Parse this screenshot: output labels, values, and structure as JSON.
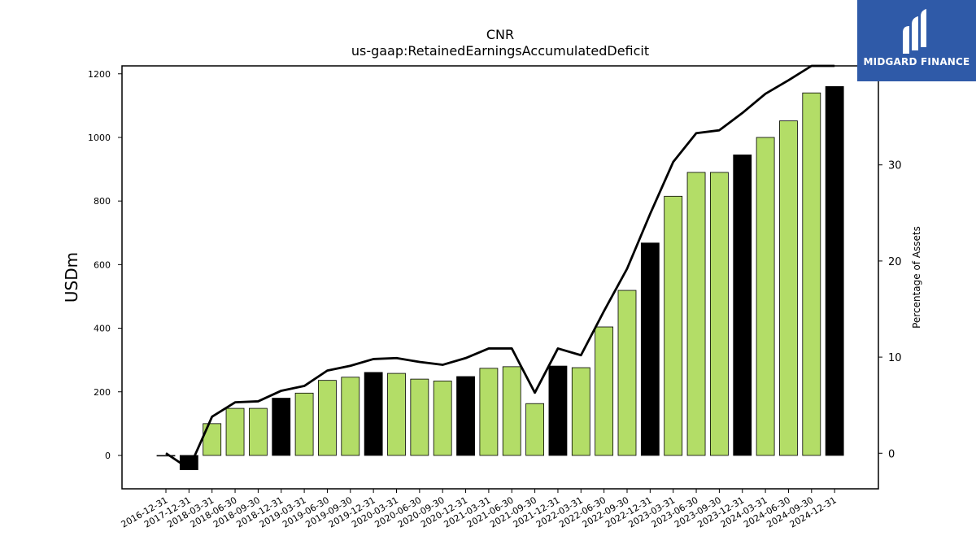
{
  "chart_data": {
    "type": "bar",
    "title": "CNR",
    "subtitle": "us-gaap:RetainedEarningsAccumulatedDeficit",
    "ylabel": "USDm",
    "y2label": "Percentage of Assets",
    "ylim": [
      -105,
      1225
    ],
    "y2lim": [
      -3.7,
      40.3
    ],
    "yticks": [
      0,
      200,
      400,
      600,
      800,
      1000,
      1200
    ],
    "y2ticks": [
      0,
      10,
      20,
      30,
      40
    ],
    "grid": false,
    "categories": [
      "2016-12-31",
      "2017-12-31",
      "2018-03-31",
      "2018-06-30",
      "2018-09-30",
      "2018-12-31",
      "2019-03-31",
      "2019-06-30",
      "2019-09-30",
      "2019-12-31",
      "2020-03-31",
      "2020-06-30",
      "2020-09-30",
      "2020-12-31",
      "2021-03-31",
      "2021-06-30",
      "2021-09-30",
      "2021-12-31",
      "2022-03-31",
      "2022-06-30",
      "2022-09-30",
      "2022-12-31",
      "2023-03-31",
      "2023-06-30",
      "2023-09-30",
      "2023-12-31",
      "2024-03-31",
      "2024-06-30",
      "2024-09-30",
      "2024-12-31"
    ],
    "series": [
      {
        "type": "bar",
        "values": [
          0,
          -45,
          100,
          148,
          148,
          180,
          196,
          236,
          246,
          261,
          258,
          240,
          234,
          248,
          274,
          279,
          163,
          281,
          276,
          404,
          519,
          668,
          815,
          890,
          890,
          945,
          1000,
          1052,
          1140,
          1160
        ],
        "colors": [
          "#b3dd67",
          "#000000",
          "#b3dd67",
          "#b3dd67",
          "#b3dd67",
          "#000000",
          "#b3dd67",
          "#b3dd67",
          "#b3dd67",
          "#000000",
          "#b3dd67",
          "#b3dd67",
          "#b3dd67",
          "#000000",
          "#b3dd67",
          "#b3dd67",
          "#b3dd67",
          "#000000",
          "#b3dd67",
          "#b3dd67",
          "#b3dd67",
          "#000000",
          "#b3dd67",
          "#b3dd67",
          "#b3dd67",
          "#000000",
          "#b3dd67",
          "#b3dd67",
          "#b3dd67",
          "#000000"
        ]
      },
      {
        "type": "line",
        "axis": "right",
        "color": "#000000",
        "values": [
          0,
          -1.6,
          3.8,
          5.3,
          5.4,
          6.5,
          7.0,
          8.6,
          9.1,
          9.8,
          9.9,
          9.5,
          9.2,
          9.9,
          10.9,
          10.9,
          6.3,
          10.9,
          10.2,
          14.8,
          19.2,
          24.9,
          30.3,
          33.3,
          33.6,
          35.4,
          37.4,
          38.8,
          40.3,
          40.3
        ]
      }
    ]
  },
  "logo": {
    "name": "MIDGARD FINANCE",
    "color": "#2f5aa8"
  }
}
